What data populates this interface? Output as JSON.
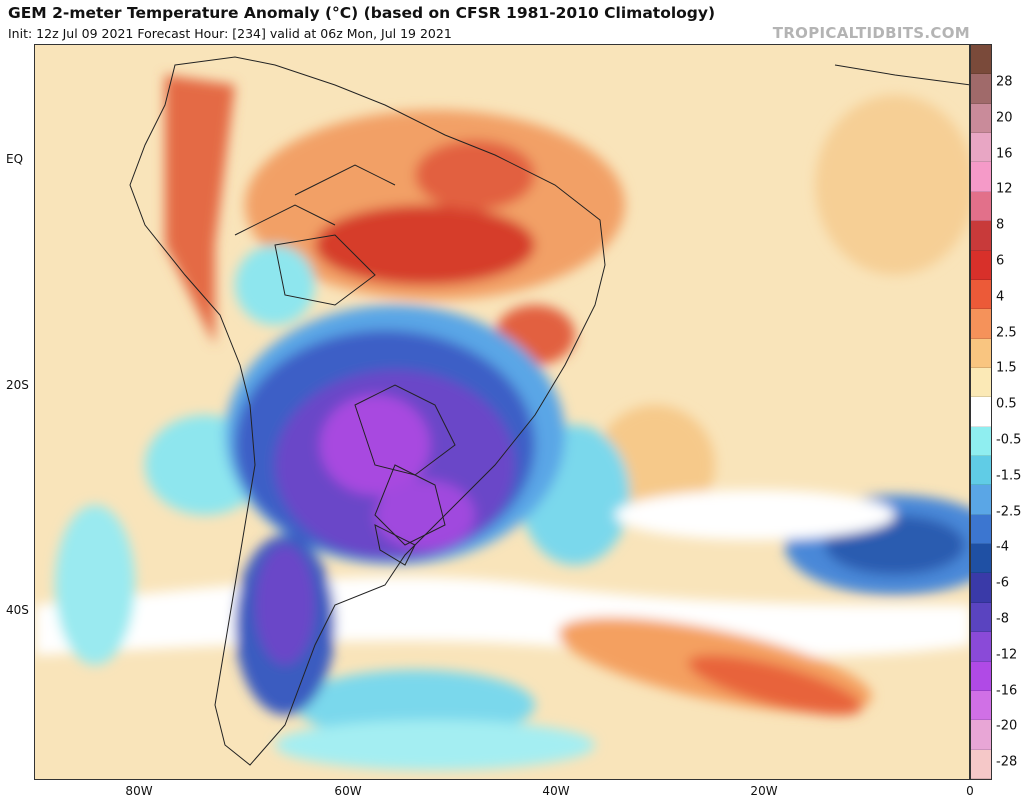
{
  "header": {
    "title": "GEM 2-meter Temperature Anomaly (°C) (based on CFSR 1981-2010 Climatology)",
    "subtitle": "Init: 12z Jul 09 2021   Forecast Hour: [234]   valid at 06z Mon, Jul 19 2021",
    "watermark": "TROPICALTIDBITS.COM"
  },
  "map": {
    "lat_labels": [
      "EQ",
      "20S",
      "40S"
    ],
    "lon_labels": [
      "80W",
      "60W",
      "40W",
      "20W",
      "0"
    ]
  },
  "colorbar": {
    "labels": [
      "28",
      "20",
      "16",
      "12",
      "8",
      "6",
      "4",
      "2.5",
      "1.5",
      "0.5",
      "-0.5",
      "-1.5",
      "-2.5",
      "-4",
      "-6",
      "-8",
      "-12",
      "-16",
      "-20",
      "-28"
    ],
    "colors": [
      "#7a4a3a",
      "#a06a6a",
      "#c98b9a",
      "#e8a6c4",
      "#f59ac8",
      "#e2708a",
      "#c83a3a",
      "#d8302a",
      "#ec5a38",
      "#f5925a",
      "#f9c580",
      "#fbe9b6",
      "#ffffff",
      "#8feef0",
      "#60cce6",
      "#5aa6e6",
      "#3c76d0",
      "#1f50a4",
      "#3a3aa8",
      "#5a44c0",
      "#8a4ad8",
      "#b04ae6",
      "#d070e6",
      "#e8a6d6",
      "#f5c8c8"
    ]
  }
}
